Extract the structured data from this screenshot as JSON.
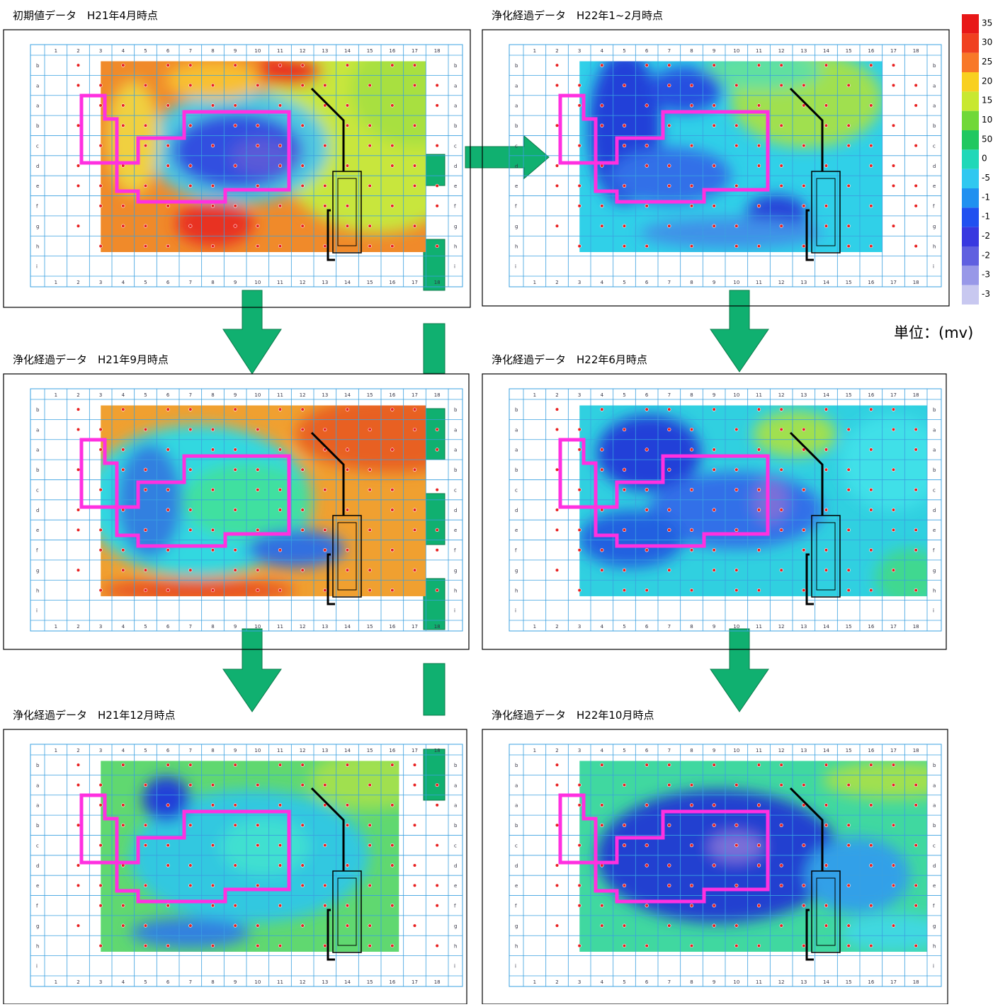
{
  "panels": [
    {
      "title": "初期値データ　H21年4月時点"
    },
    {
      "title": "浄化経過データ　H22年1~2月時点"
    },
    {
      "title": "浄化経過データ　H21年9月時点"
    },
    {
      "title": "浄化経過データ　H22年6月時点"
    },
    {
      "title": "浄化経過データ　H21年12月時点"
    },
    {
      "title": "浄化経過データ　H22年10月時点"
    }
  ],
  "grid": {
    "columns": [
      "1",
      "2",
      "3",
      "4",
      "5",
      "6",
      "7",
      "8",
      "9",
      "10",
      "11",
      "12",
      "13",
      "14",
      "15",
      "16",
      "17",
      "18"
    ],
    "rows": [
      "b",
      "a",
      "a",
      "b",
      "c",
      "d",
      "e",
      "f",
      "g",
      "h",
      "i"
    ]
  },
  "legend": {
    "labels": [
      "35",
      "30",
      "25",
      "20",
      "15",
      "10",
      "50",
      "0",
      "-5",
      "-1",
      "-1",
      "-2",
      "-2",
      "-3",
      "-3"
    ],
    "unit": "単位：(mv)"
  }
}
